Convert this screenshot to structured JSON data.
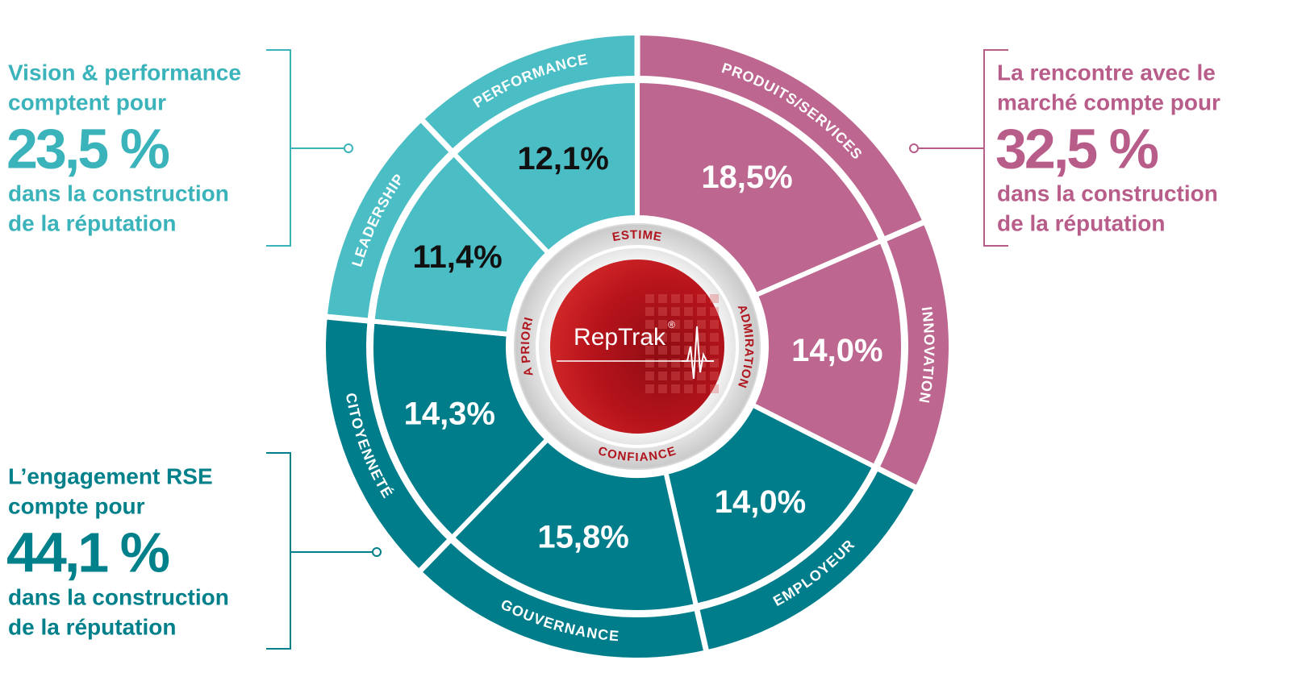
{
  "chart_data": {
    "type": "radial",
    "segments": [
      {
        "name": "PRODUITS/SERVICES",
        "value": 18.5,
        "value_label": "18,5%",
        "group": 0
      },
      {
        "name": "INNOVATION",
        "value": 14.0,
        "value_label": "14,0%",
        "group": 0
      },
      {
        "name": "EMPLOYEUR",
        "value": 14.0,
        "value_label": "14,0%",
        "group": 1
      },
      {
        "name": "GOUVERNANCE",
        "value": 15.8,
        "value_label": "15,8%",
        "group": 1
      },
      {
        "name": "CITOYENNETÉ",
        "value": 14.3,
        "value_label": "14,3%",
        "group": 1
      },
      {
        "name": "LEADERSHIP",
        "value": 11.4,
        "value_label": "11,4%",
        "group": 2
      },
      {
        "name": "PERFORMANCE",
        "value": 12.1,
        "value_label": "12,1%",
        "group": 2
      }
    ],
    "groups": [
      {
        "color": "#bc6690",
        "text_color": "#b85c8a",
        "value": 32.5,
        "value_label": "32,5 %",
        "before": [
          "La rencontre avec le",
          "marché compte pour"
        ],
        "after": [
          "dans la construction",
          "de la réputation"
        ]
      },
      {
        "color": "#007d8a",
        "text_color": "#00808a",
        "value": 44.1,
        "value_label": "44,1 %",
        "before": [
          "L’engagement RSE",
          "compte pour"
        ],
        "after": [
          "dans la construction",
          "de la réputation"
        ]
      },
      {
        "color": "#4bbdc4",
        "text_color": "#3bb3bb",
        "value": 23.5,
        "value_label": "23,5 %",
        "before": [
          "Vision & performance",
          "comptent pour"
        ],
        "after": [
          "dans la construction",
          "de la réputation"
        ]
      }
    ],
    "center": {
      "brand": "RepTrak",
      "mark": "®",
      "labels": [
        "ESTIME",
        "ADMIRATION",
        "CONFIANCE",
        "A PRIORI"
      ]
    }
  }
}
